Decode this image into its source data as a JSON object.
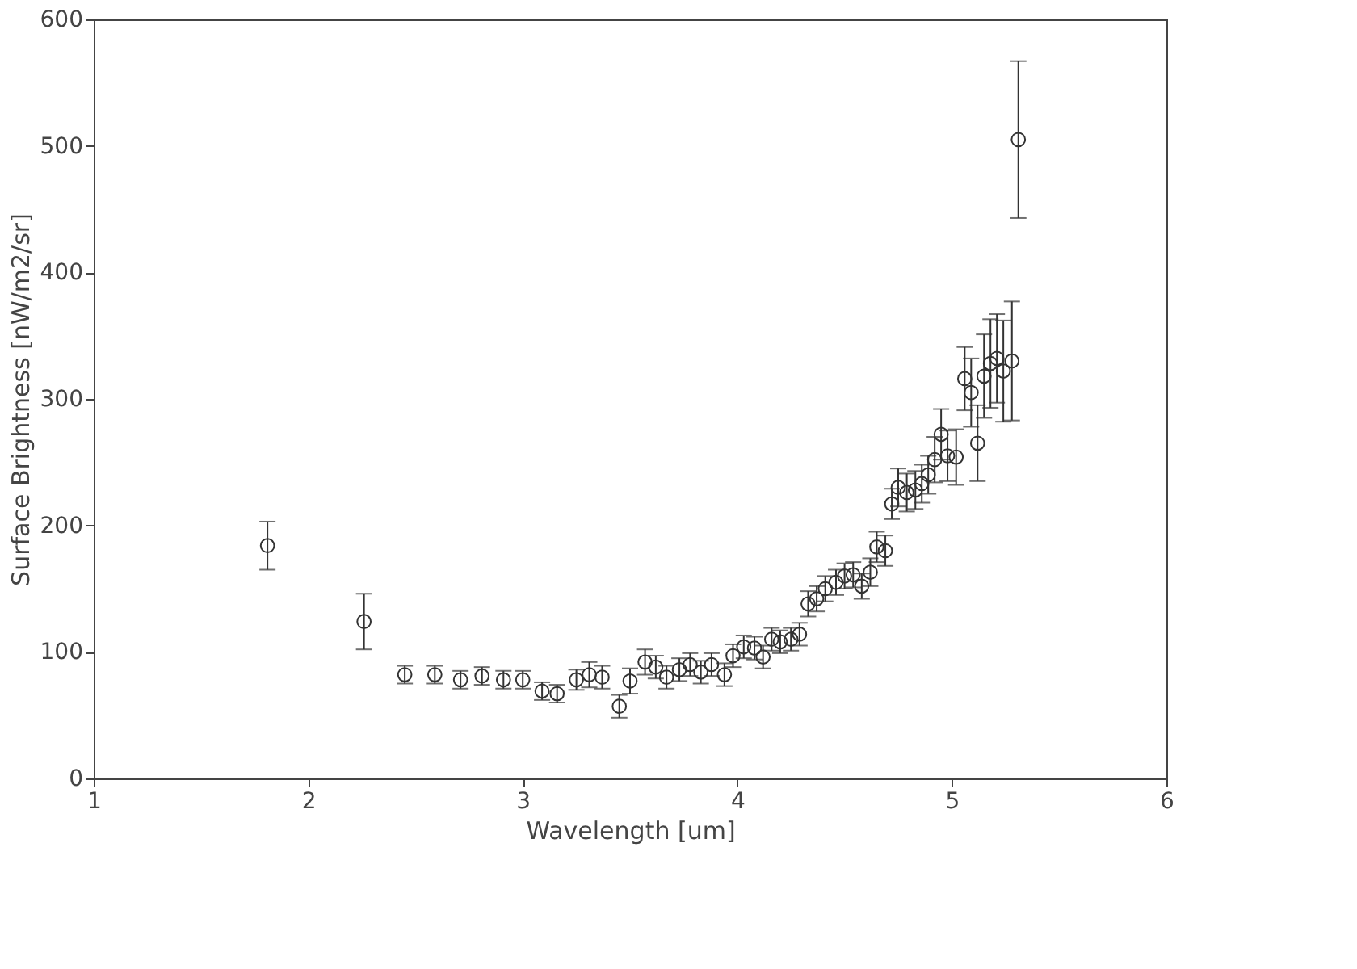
{
  "chart_data": {
    "type": "scatter",
    "xlabel": "Wavelength [um]",
    "ylabel": "Surface Brightness [nW/m2/sr]",
    "xlim": [
      1,
      6
    ],
    "xticks": [
      1,
      2,
      3,
      4,
      5,
      6
    ],
    "ylim": [
      0,
      600
    ],
    "yticks": [
      0,
      100,
      200,
      300,
      400,
      500,
      600
    ],
    "grid": false,
    "marker": "circle",
    "series": [
      {
        "color": "#333333",
        "x": [
          1.81,
          2.26,
          2.45,
          2.59,
          2.71,
          2.81,
          2.91,
          3.0,
          3.09,
          3.16,
          3.25,
          3.31,
          3.37,
          3.45,
          3.5,
          3.57,
          3.62,
          3.67,
          3.73,
          3.78,
          3.83,
          3.88,
          3.94,
          3.98,
          4.03,
          4.08,
          4.12,
          4.16,
          4.2,
          4.25,
          4.29,
          4.33,
          4.37,
          4.41,
          4.46,
          4.5,
          4.54,
          4.58,
          4.62,
          4.65,
          4.69,
          4.72,
          4.75,
          4.79,
          4.83,
          4.86,
          4.89,
          4.92,
          4.95,
          4.98,
          5.02,
          5.06,
          5.09,
          5.12,
          5.15,
          5.18,
          5.21,
          5.24,
          5.28,
          5.31
        ],
        "values": [
          184,
          124,
          82,
          82,
          78,
          81,
          78,
          78,
          69,
          67,
          78,
          82,
          80,
          57,
          77,
          92,
          88,
          80,
          86,
          90,
          84,
          90,
          82,
          97,
          104,
          103,
          96,
          110,
          108,
          110,
          114,
          138,
          142,
          150,
          155,
          160,
          161,
          152,
          163,
          183,
          180,
          217,
          230,
          226,
          228,
          233,
          240,
          252,
          272,
          255,
          254,
          316,
          305,
          265,
          318,
          328,
          332,
          322,
          330,
          505
        ],
        "errors": [
          19,
          22,
          7,
          7,
          7,
          7,
          7,
          7,
          7,
          7,
          8,
          10,
          9,
          9,
          10,
          10,
          9,
          9,
          9,
          9,
          9,
          9,
          9,
          9,
          9,
          9,
          9,
          9,
          9,
          9,
          9,
          10,
          10,
          10,
          10,
          10,
          10,
          10,
          11,
          12,
          12,
          12,
          15,
          15,
          15,
          15,
          15,
          18,
          20,
          20,
          22,
          25,
          27,
          30,
          33,
          35,
          35,
          40,
          47,
          62
        ]
      }
    ]
  }
}
